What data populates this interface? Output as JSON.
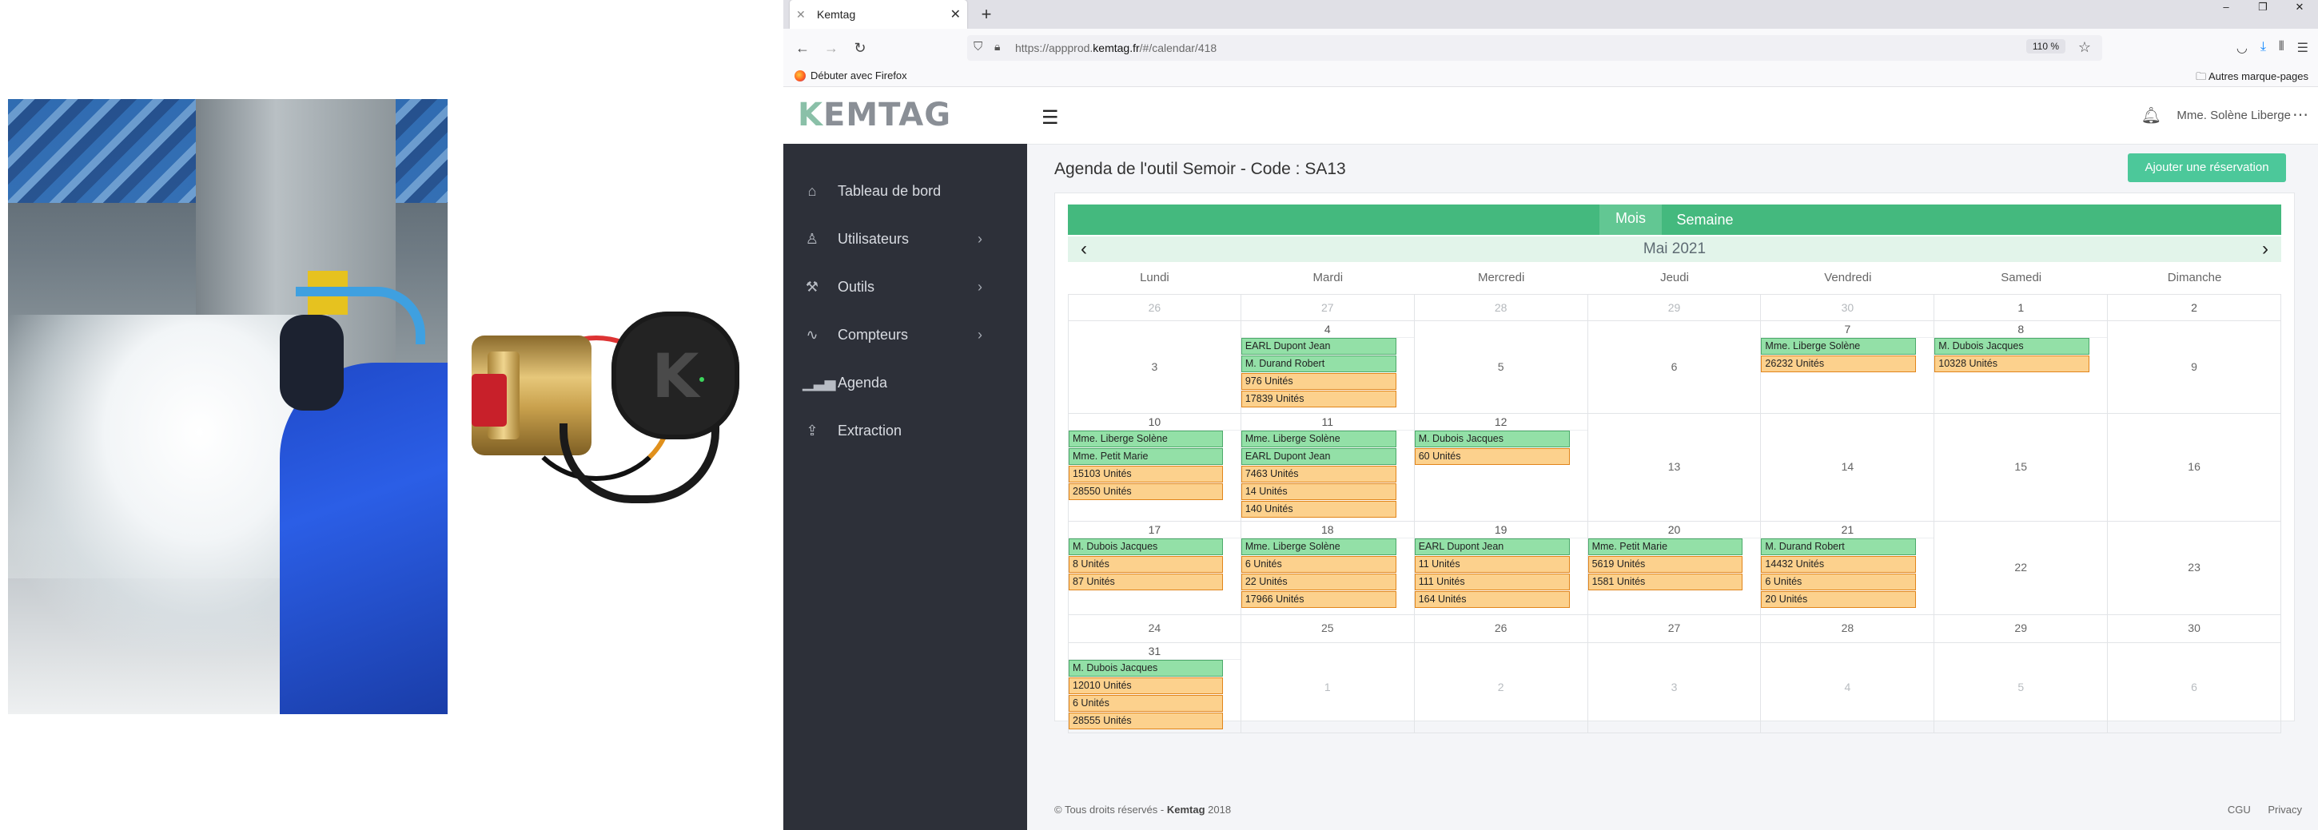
{
  "browser": {
    "tab_title": "Kemtag",
    "new_tab": "+",
    "url_prefix": "https://appprod.",
    "url_domain": "kemtag.fr",
    "url_suffix": "/#/calendar/418",
    "zoom": "110 %",
    "bookmark": "Débuter avec Firefox",
    "other_bookmarks": "Autres marque-pages"
  },
  "brand": {
    "logo": "KEMTAG",
    "tag_letter": "K"
  },
  "sidebar": {
    "items": [
      {
        "label": "Tableau de bord",
        "icon": "home-icon"
      },
      {
        "label": "Utilisateurs",
        "icon": "user-icon"
      },
      {
        "label": "Outils",
        "icon": "tools-icon"
      },
      {
        "label": "Compteurs",
        "icon": "pulse-icon"
      },
      {
        "label": "Agenda",
        "icon": "chart-icon"
      },
      {
        "label": "Extraction",
        "icon": "upload-icon"
      }
    ]
  },
  "header": {
    "user": "Mme. Solène Liberge"
  },
  "page": {
    "title": "Agenda de l'outil Semoir - Code : SA13",
    "add_button": "Ajouter une réservation"
  },
  "calendar": {
    "view_month": "Mois",
    "view_week": "Semaine",
    "month_title": "Mai 2021",
    "day_headers": [
      "Lundi",
      "Mardi",
      "Mercredi",
      "Jeudi",
      "Vendredi",
      "Samedi",
      "Dimanche"
    ],
    "weeks": [
      {
        "top": [
          {
            "n": "26",
            "out": true
          },
          {
            "n": "27",
            "out": true
          },
          {
            "n": "28",
            "out": true
          },
          {
            "n": "29",
            "out": true
          },
          {
            "n": "30",
            "out": true
          },
          {
            "n": "1"
          },
          {
            "n": "2"
          }
        ],
        "days": [
          {
            "n": "3",
            "events": []
          },
          {
            "n": "4",
            "events": [
              {
                "t": "EARL Dupont Jean",
                "c": "g"
              },
              {
                "t": "M. Durand Robert",
                "c": "g"
              },
              {
                "t": "976 Unités",
                "c": "o"
              },
              {
                "t": "17839 Unités",
                "c": "o"
              }
            ]
          },
          {
            "n": "5",
            "events": []
          },
          {
            "n": "6",
            "events": []
          },
          {
            "n": "7",
            "events": [
              {
                "t": "Mme. Liberge Solène",
                "c": "g"
              },
              {
                "t": "26232 Unités",
                "c": "o"
              }
            ]
          },
          {
            "n": "8",
            "events": [
              {
                "t": "M. Dubois Jacques",
                "c": "g"
              },
              {
                "t": "10328 Unités",
                "c": "o"
              }
            ]
          },
          {
            "n": "9",
            "events": []
          }
        ]
      },
      {
        "days": [
          {
            "n": "10",
            "events": [
              {
                "t": "Mme. Liberge Solène",
                "c": "g"
              },
              {
                "t": "Mme. Petit Marie",
                "c": "g"
              },
              {
                "t": "15103 Unités",
                "c": "o"
              },
              {
                "t": "28550 Unités",
                "c": "o"
              }
            ]
          },
          {
            "n": "11",
            "events": [
              {
                "t": "Mme. Liberge Solène",
                "c": "g"
              },
              {
                "t": "EARL Dupont Jean",
                "c": "g"
              },
              {
                "t": "7463 Unités",
                "c": "o"
              },
              {
                "t": "14 Unités",
                "c": "o"
              },
              {
                "t": "140 Unités",
                "c": "o"
              }
            ]
          },
          {
            "n": "12",
            "events": [
              {
                "t": "M. Dubois Jacques",
                "c": "g"
              },
              {
                "t": "60 Unités",
                "c": "o"
              }
            ]
          },
          {
            "n": "13",
            "events": []
          },
          {
            "n": "14",
            "events": []
          },
          {
            "n": "15",
            "events": []
          },
          {
            "n": "16",
            "events": []
          }
        ]
      },
      {
        "days": [
          {
            "n": "17",
            "events": [
              {
                "t": "M. Dubois Jacques",
                "c": "g"
              },
              {
                "t": "8 Unités",
                "c": "o"
              },
              {
                "t": "87 Unités",
                "c": "o"
              }
            ]
          },
          {
            "n": "18",
            "events": [
              {
                "t": "Mme. Liberge Solène",
                "c": "g"
              },
              {
                "t": "6 Unités",
                "c": "o"
              },
              {
                "t": "22 Unités",
                "c": "o"
              },
              {
                "t": "17966 Unités",
                "c": "o"
              }
            ]
          },
          {
            "n": "19",
            "events": [
              {
                "t": "EARL Dupont Jean",
                "c": "g"
              },
              {
                "t": "11 Unités",
                "c": "o"
              },
              {
                "t": "111 Unités",
                "c": "o"
              },
              {
                "t": "164 Unités",
                "c": "o"
              }
            ]
          },
          {
            "n": "20",
            "events": [
              {
                "t": "Mme. Petit Marie",
                "c": "g"
              },
              {
                "t": "5619 Unités",
                "c": "o"
              },
              {
                "t": "1581 Unités",
                "c": "o"
              }
            ]
          },
          {
            "n": "21",
            "events": [
              {
                "t": "M. Durand Robert",
                "c": "g"
              },
              {
                "t": "14432 Unités",
                "c": "o"
              },
              {
                "t": "6 Unités",
                "c": "o"
              },
              {
                "t": "20 Unités",
                "c": "o"
              }
            ]
          },
          {
            "n": "22",
            "events": []
          },
          {
            "n": "23",
            "events": []
          }
        ]
      },
      {
        "days": [
          {
            "n": "24",
            "events": []
          },
          {
            "n": "25",
            "events": []
          },
          {
            "n": "26",
            "events": []
          },
          {
            "n": "27",
            "events": []
          },
          {
            "n": "28",
            "events": []
          },
          {
            "n": "29",
            "events": []
          },
          {
            "n": "30",
            "events": []
          }
        ]
      },
      {
        "days": [
          {
            "n": "31",
            "events": [
              {
                "t": "M. Dubois Jacques",
                "c": "g"
              },
              {
                "t": "12010 Unités",
                "c": "o"
              },
              {
                "t": "6 Unités",
                "c": "o"
              },
              {
                "t": "28555 Unités",
                "c": "o"
              }
            ]
          },
          {
            "n": "1",
            "out": true,
            "events": []
          },
          {
            "n": "2",
            "out": true,
            "events": []
          },
          {
            "n": "3",
            "out": true,
            "events": []
          },
          {
            "n": "4",
            "out": true,
            "events": []
          },
          {
            "n": "5",
            "out": true,
            "events": []
          },
          {
            "n": "6",
            "out": true,
            "events": []
          }
        ]
      }
    ]
  },
  "footer": {
    "prefix": "© Tous droits réservés - ",
    "brand": "Kemtag",
    "year": " 2018",
    "links": [
      "CGU",
      "Privacy"
    ]
  },
  "colors": {
    "green": "#44b97e",
    "accent": "#4cc89a",
    "event_green": "#93e0a7",
    "event_orange": "#fcd18d",
    "sidebar": "#2d3039"
  }
}
